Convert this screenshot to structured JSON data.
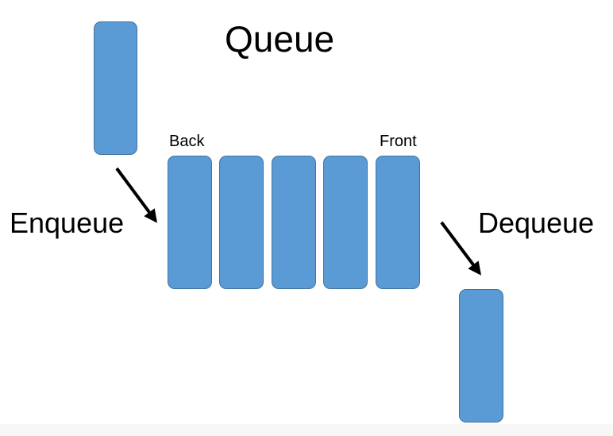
{
  "title": "Queue",
  "labels": {
    "enqueue": "Enqueue",
    "dequeue": "Dequeue",
    "back": "Back",
    "front": "Front"
  },
  "queue": {
    "element_count": 5,
    "incoming_count": 1,
    "outgoing_count": 1
  },
  "colors": {
    "block_fill": "#5b9bd5",
    "block_border": "#41719c",
    "arrow": "#000000",
    "text": "#000000",
    "background": "#ffffff"
  }
}
